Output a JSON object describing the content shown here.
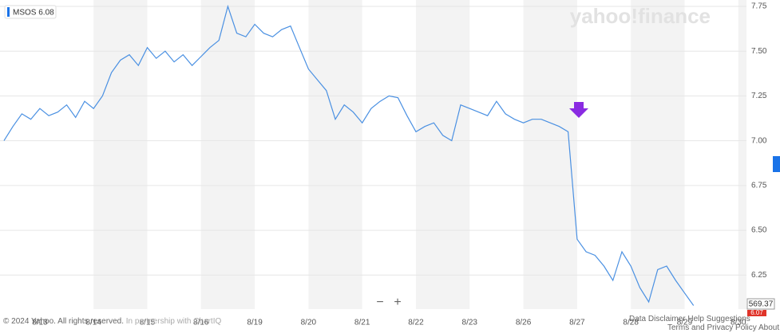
{
  "chart_data": {
    "type": "line",
    "watermark": "yahoo!finance",
    "categories": [
      null,
      null,
      null,
      null,
      "8/13",
      null,
      null,
      null,
      null,
      null,
      "8/14",
      null,
      null,
      null,
      null,
      null,
      "8/15",
      null,
      null,
      null,
      null,
      null,
      "8/16",
      null,
      null,
      null,
      null,
      null,
      "8/19",
      null,
      null,
      null,
      null,
      null,
      "8/20",
      null,
      null,
      null,
      null,
      null,
      "8/21",
      null,
      null,
      null,
      null,
      null,
      "8/22",
      null,
      null,
      null,
      null,
      null,
      "8/23",
      null,
      null,
      null,
      null,
      null,
      "8/26",
      null,
      null,
      null,
      null,
      null,
      "8/27",
      null,
      null,
      null,
      null,
      null,
      "8/28",
      null,
      null,
      null,
      null,
      null,
      "8/29",
      null,
      null,
      null,
      null,
      null,
      "8/30",
      null
    ],
    "series": [
      {
        "name": "MSOS",
        "color": "#4a90e2",
        "values": [
          7.0,
          7.08,
          7.15,
          7.12,
          7.18,
          7.14,
          7.16,
          7.2,
          7.13,
          7.22,
          7.18,
          7.25,
          7.38,
          7.45,
          7.48,
          7.42,
          7.52,
          7.46,
          7.5,
          7.44,
          7.48,
          7.42,
          7.47,
          7.52,
          7.56,
          7.75,
          7.6,
          7.58,
          7.65,
          7.6,
          7.58,
          7.62,
          7.64,
          7.52,
          7.4,
          7.34,
          7.28,
          7.12,
          7.2,
          7.16,
          7.1,
          7.18,
          7.22,
          7.25,
          7.24,
          7.14,
          7.05,
          7.08,
          7.1,
          7.03,
          7.0,
          7.2,
          7.18,
          7.16,
          7.14,
          7.22,
          7.15,
          7.12,
          7.1,
          7.12,
          7.12,
          7.1,
          7.08,
          7.05,
          6.45,
          6.38,
          6.36,
          6.3,
          6.22,
          6.38,
          6.3,
          6.18,
          6.1,
          6.28,
          6.3,
          6.22,
          6.15,
          6.08,
          null,
          null,
          null,
          null,
          null,
          null
        ]
      }
    ],
    "legend_price": 6.08,
    "price_tag": 6.07,
    "volume_tag": 569.37,
    "ylim": [
      6.06,
      7.75
    ],
    "yticks": [
      {
        "value": 6.25,
        "label": "6.25"
      },
      {
        "value": 6.5,
        "label": "6.50"
      },
      6.75,
      {
        "value": 7,
        "label": "7.00"
      },
      7.25,
      {
        "value": 7.5,
        "label": "7.50"
      },
      7.75
    ],
    "grid": true
  },
  "zoom": {
    "minus": "−",
    "plus": "+"
  },
  "footer": {
    "copyright": "© 2024 Yahoo. All rights reserved.",
    "partner": "In partnership with ChartIQ",
    "links": [
      "Data Disclaimer",
      "Help",
      "Suggestions"
    ],
    "links2": [
      "Terms",
      "and",
      "Privacy Policy",
      "About Our Ads"
    ]
  }
}
